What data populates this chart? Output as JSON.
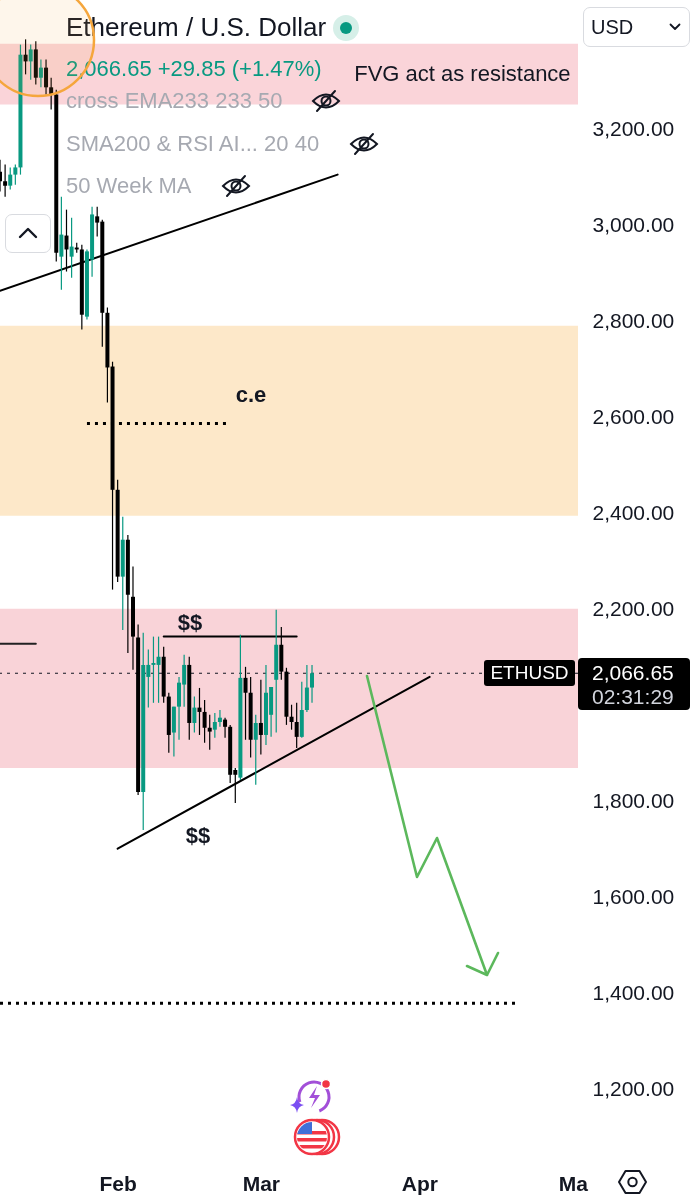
{
  "chart_data": {
    "type": "candlestick",
    "title": "Ethereum / U.S. Dollar",
    "subtitle": "2,066.65 +29.85 (+1.47%)",
    "x": [
      "--01-09",
      "--01-10",
      "--01-11",
      "--01-12",
      "--01-13",
      "--01-14",
      "--01-15",
      "--01-16",
      "--01-17",
      "--01-18",
      "--01-19",
      "--01-20",
      "--01-21",
      "--01-22",
      "--01-23",
      "--01-24",
      "--01-25",
      "--01-26",
      "--01-27",
      "--01-28",
      "--01-29",
      "--01-30",
      "--01-31",
      "--02-01",
      "--02-02",
      "--02-03",
      "--02-04",
      "--02-05",
      "--02-06",
      "--02-07",
      "--02-08",
      "--02-09",
      "--02-10",
      "--02-11",
      "--02-12",
      "--02-13",
      "--02-14",
      "--02-15",
      "--02-16",
      "--02-17",
      "--02-18",
      "--02-19",
      "--02-20",
      "--02-21",
      "--02-22",
      "--02-23",
      "--02-24",
      "--02-25",
      "--02-26",
      "--02-27",
      "--02-28",
      "--03-01",
      "--03-02",
      "--03-03",
      "--03-04",
      "--03-05",
      "--03-06",
      "--03-07",
      "--03-08",
      "--03-09",
      "--03-10",
      "--03-11"
    ],
    "ohlc": [
      [
        3112,
        3137,
        3071,
        3092
      ],
      [
        3092,
        3127,
        3060,
        3083
      ],
      [
        3083,
        3121,
        3075,
        3106
      ],
      [
        3106,
        3127,
        3085,
        3121
      ],
      [
        3121,
        3377,
        3106,
        3356
      ],
      [
        3356,
        3388,
        3315,
        3342
      ],
      [
        3342,
        3377,
        3304,
        3367
      ],
      [
        3367,
        3384,
        3294,
        3308
      ],
      [
        3308,
        3346,
        3288,
        3329
      ],
      [
        3329,
        3346,
        3273,
        3288
      ],
      [
        3288,
        3308,
        3242,
        3273
      ],
      [
        3273,
        3283,
        2925,
        2943
      ],
      [
        2935,
        3060,
        2866,
        2981
      ],
      [
        2979,
        3033,
        2904,
        2950
      ],
      [
        2935,
        3016,
        2891,
        2956
      ],
      [
        2954,
        2964,
        2943,
        2950
      ],
      [
        2950,
        2960,
        2783,
        2814
      ],
      [
        2810,
        2950,
        2804,
        2946
      ],
      [
        2929,
        3039,
        2893,
        3023
      ],
      [
        3019,
        3039,
        2977,
        3006
      ],
      [
        3008,
        3012,
        2747,
        2818
      ],
      [
        2818,
        2829,
        2631,
        2704
      ],
      [
        2706,
        2716,
        2241,
        2449
      ],
      [
        2449,
        2470,
        2257,
        2268
      ],
      [
        2268,
        2393,
        2157,
        2345
      ],
      [
        2345,
        2355,
        2109,
        2230
      ],
      [
        2226,
        2289,
        2074,
        2143
      ],
      [
        2141,
        2168,
        1813,
        1819
      ],
      [
        1819,
        2151,
        1740,
        2084
      ],
      [
        2059,
        2116,
        1995,
        2084
      ],
      [
        2084,
        2143,
        2005,
        2088
      ],
      [
        2084,
        2143,
        2005,
        2101
      ],
      [
        2101,
        2122,
        2005,
        2018
      ],
      [
        2018,
        2026,
        1901,
        1938
      ],
      [
        1943,
        1997,
        1893,
        1997
      ],
      [
        1997,
        2059,
        1928,
        2047
      ],
      [
        2043,
        2105,
        1997,
        2084
      ],
      [
        2084,
        2101,
        1928,
        1963
      ],
      [
        1963,
        2018,
        1943,
        1995
      ],
      [
        1995,
        2036,
        1938,
        1986
      ],
      [
        1986,
        2011,
        1922,
        1953
      ],
      [
        1953,
        1980,
        1907,
        1945
      ],
      [
        1949,
        1984,
        1932,
        1965
      ],
      [
        1965,
        1990,
        1955,
        1974
      ],
      [
        1970,
        1974,
        1932,
        1955
      ],
      [
        1955,
        1959,
        1838,
        1855
      ],
      [
        1865,
        1869,
        1796,
        1855
      ],
      [
        1849,
        2147,
        1844,
        2057
      ],
      [
        2057,
        2080,
        1928,
        2026
      ],
      [
        2026,
        2059,
        1891,
        1928
      ],
      [
        1928,
        1980,
        1834,
        1963
      ],
      [
        1963,
        2053,
        1897,
        1938
      ],
      [
        1938,
        2084,
        1917,
        2026
      ],
      [
        1980,
        2038,
        1934,
        2038
      ],
      [
        2053,
        2199,
        1943,
        2126
      ],
      [
        2126,
        2163,
        2053,
        2070
      ],
      [
        2070,
        2078,
        1959,
        1976
      ],
      [
        1976,
        2001,
        1949,
        1965
      ],
      [
        1965,
        2005,
        1911,
        1934
      ],
      [
        1934,
        2049,
        1932,
        1990
      ],
      [
        1990,
        2084,
        1986,
        2036.8
      ],
      [
        2036.8,
        2084,
        2005,
        2066.65
      ]
    ],
    "colors": [
      "#000000",
      "#000000",
      "#089981",
      "#089981",
      "#089981",
      "#000000",
      "#089981",
      "#000000",
      "#089981",
      "#000000",
      "#000000",
      "#000000",
      "#089981",
      "#000000",
      "#089981",
      "#000000",
      "#000000",
      "#089981",
      "#089981",
      "#000000",
      "#000000",
      "#000000",
      "#000000",
      "#000000",
      "#089981",
      "#000000",
      "#000000",
      "#000000",
      "#089981",
      "#089981",
      "#089981",
      "#089981",
      "#000000",
      "#000000",
      "#089981",
      "#089981",
      "#089981",
      "#000000",
      "#089981",
      "#000000",
      "#000000",
      "#000000",
      "#089981",
      "#089981",
      "#000000",
      "#000000",
      "#000000",
      "#089981",
      "#000000",
      "#000000",
      "#089981",
      "#000000",
      "#089981",
      "#089981",
      "#089981",
      "#000000",
      "#000000",
      "#000000",
      "#000000",
      "#089981",
      "#089981",
      "#089981"
    ],
    "series": [
      {
        "type": "line",
        "color": "#000000",
        "x": [
          "--01-09",
          "--03-16"
        ],
        "values": [
          2864,
          3106
        ]
      },
      {
        "type": "line",
        "color": "#000000",
        "x": [
          "--02-10",
          "--03-08"
        ],
        "values": [
          2143,
          2143
        ]
      },
      {
        "type": "line",
        "color": "#000000",
        "x": [
          "--02-01",
          "--04-03"
        ],
        "values": [
          1701,
          2059
        ]
      },
      {
        "type": "line",
        "color": "#222222",
        "x": [
          "--01-09",
          "--01-16"
        ],
        "values": [
          2128,
          2128
        ]
      },
      {
        "type": "line",
        "color": "#000000",
        "line_style": "dotted",
        "x": [
          "--01-26",
          "--02-23"
        ],
        "values": [
          2587,
          2587
        ]
      },
      {
        "type": "line",
        "color": "#000000",
        "line_style": "dotted",
        "x": [
          "--01-09",
          "--04-20"
        ],
        "values": [
          1379,
          1379
        ]
      }
    ],
    "bands": [
      {
        "axis": "y",
        "from": 3252,
        "to": 3379,
        "label": "FVG act as resistance",
        "color": "#fad4d9"
      },
      {
        "axis": "y",
        "from": 2395,
        "to": 2791,
        "color": "#fde8c9"
      },
      {
        "axis": "y",
        "from": 1869,
        "to": 2201,
        "color": "#f9d3d8"
      }
    ],
    "ref_lines": [
      {
        "axis": "y",
        "value": 2066.65,
        "label": "ETHUSD",
        "color": "#131722",
        "line_style": "dotted"
      }
    ],
    "annotations": [
      "cross EMA233 233 50",
      "SMA200 & RSI AI... 20 40",
      "50 Week MA",
      "USD",
      "2,066.65",
      "02:31:29",
      "c.e",
      "$$",
      "$$"
    ],
    "xlim": [
      "--01-09",
      "--05-02"
    ],
    "xticks": [
      {
        "value": "--02-01",
        "label": "Feb"
      },
      {
        "value": "--03-01",
        "label": "Mar"
      },
      {
        "value": "--04-01",
        "label": "Apr"
      },
      {
        "value": "--05-01",
        "label": "Ma"
      }
    ],
    "ylim": [
      1200,
      3470
    ],
    "yticks": [
      {
        "value": 1200,
        "label": "1,200.00"
      },
      {
        "value": 1400,
        "label": "1,400.00"
      },
      {
        "value": 1600,
        "label": "1,600.00"
      },
      {
        "value": 1800,
        "label": "1,800.00"
      },
      {
        "value": 2200,
        "label": "2,200.00"
      },
      {
        "value": 2400,
        "label": "2,400.00"
      },
      {
        "value": 2600,
        "label": "2,600.00"
      },
      {
        "value": 2800,
        "label": "2,800.00"
      },
      {
        "value": 3000,
        "label": "3,000.00"
      },
      {
        "value": 3200,
        "label": "3,200.00"
      }
    ]
  }
}
